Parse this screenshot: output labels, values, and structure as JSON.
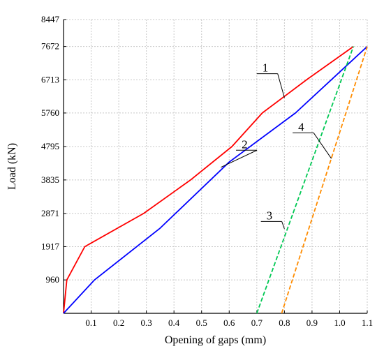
{
  "chart_data": {
    "type": "line",
    "title": "",
    "xlabel": "Opening of gaps (mm)",
    "ylabel": "Load (kN)",
    "xlim": [
      0,
      1.1
    ],
    "ylim": [
      0,
      8447
    ],
    "grid": true,
    "x_ticks": [
      0.1,
      0.2,
      0.3,
      0.4,
      0.5,
      0.6,
      0.7,
      0.8,
      0.9,
      1.0,
      1.1
    ],
    "x_tick_labels": [
      "0.1",
      "0.2",
      "0.3",
      "0.4",
      "0.5",
      "0.6",
      "0.7",
      "0.8",
      "0.9",
      "1.0",
      "1.1"
    ],
    "y_ticks": [
      960,
      1917,
      2871,
      3835,
      4795,
      5760,
      6713,
      7672,
      8447
    ],
    "y_tick_labels": [
      "960",
      "1917",
      "2871",
      "3835",
      "4795",
      "5760",
      "6713",
      "7672",
      "8447"
    ],
    "series": [
      {
        "id": "1",
        "color": "#ff0000",
        "style": "solid",
        "x": [
          0,
          0.012,
          0.077,
          0.29,
          0.46,
          0.61,
          0.72,
          0.88,
          1.05
        ],
        "y": [
          0,
          960,
          1917,
          2871,
          3835,
          4795,
          5760,
          6713,
          7672
        ]
      },
      {
        "id": "2",
        "color": "#0000ff",
        "style": "solid",
        "x": [
          0,
          0.112,
          0.35,
          0.6,
          0.84,
          1.1
        ],
        "y": [
          0,
          960,
          2450,
          4350,
          5760,
          7672
        ]
      },
      {
        "id": "3",
        "color": "#00c853",
        "style": "dashed",
        "x": [
          0.7,
          1.05
        ],
        "y": [
          0,
          7672
        ]
      },
      {
        "id": "4",
        "color": "#ff8c00",
        "style": "dashed",
        "x": [
          0.79,
          1.1
        ],
        "y": [
          0,
          7672
        ]
      }
    ],
    "annotations": [
      {
        "label": "1",
        "series": "1",
        "text_x": 0.72,
        "text_y": 6950,
        "anchor_x": 0.8,
        "anchor_y": 6200
      },
      {
        "label": "2",
        "series": "2",
        "text_x": 0.645,
        "text_y": 4750,
        "anchor_x": 0.57,
        "anchor_y": 4200
      },
      {
        "label": "3",
        "series": "3",
        "text_x": 0.735,
        "text_y": 2700,
        "anchor_x": 0.8,
        "anchor_y": 2430
      },
      {
        "label": "4",
        "series": "4",
        "text_x": 0.85,
        "text_y": 5250,
        "anchor_x": 0.97,
        "anchor_y": 4450
      }
    ]
  }
}
